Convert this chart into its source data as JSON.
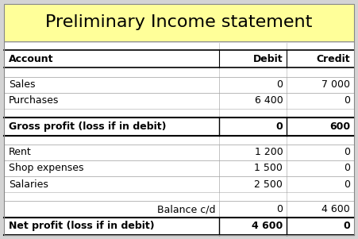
{
  "title": "Preliminary Income statement",
  "title_bg": "#ffff99",
  "outer_bg": "#d4d4d4",
  "white": "#ffffff",
  "black": "#000000",
  "grid_color": "#aaaaaa",
  "header": [
    "Account",
    "Debit",
    "Credit"
  ],
  "rows": [
    {
      "label": "Sales",
      "debit": "0",
      "credit": "7 000",
      "bold": false,
      "align": "left",
      "thick_top": false,
      "thick_bot": false
    },
    {
      "label": "Purchases",
      "debit": "6 400",
      "credit": "0",
      "bold": false,
      "align": "left",
      "thick_top": false,
      "thick_bot": false
    },
    {
      "label": "Gross profit (loss if in debit)",
      "debit": "0",
      "credit": "600",
      "bold": true,
      "align": "left",
      "thick_top": true,
      "thick_bot": true
    },
    {
      "label": "Rent",
      "debit": "1 200",
      "credit": "0",
      "bold": false,
      "align": "left",
      "thick_top": false,
      "thick_bot": false
    },
    {
      "label": "Shop expenses",
      "debit": "1 500",
      "credit": "0",
      "bold": false,
      "align": "left",
      "thick_top": false,
      "thick_bot": false
    },
    {
      "label": "Salaries",
      "debit": "2 500",
      "credit": "0",
      "bold": false,
      "align": "left",
      "thick_top": false,
      "thick_bot": false
    },
    {
      "label": "Balance c/d",
      "debit": "0",
      "credit": "4 600",
      "bold": false,
      "align": "right",
      "thick_top": false,
      "thick_bot": false
    },
    {
      "label": "Net profit (loss if in debit)",
      "debit": "4 600",
      "credit": "0",
      "bold": true,
      "align": "left",
      "thick_top": true,
      "thick_bot": true
    }
  ],
  "title_font_size": 16,
  "header_font_size": 9,
  "row_font_size": 9,
  "fig_w": 4.51,
  "fig_h": 3.01,
  "dpi": 100
}
